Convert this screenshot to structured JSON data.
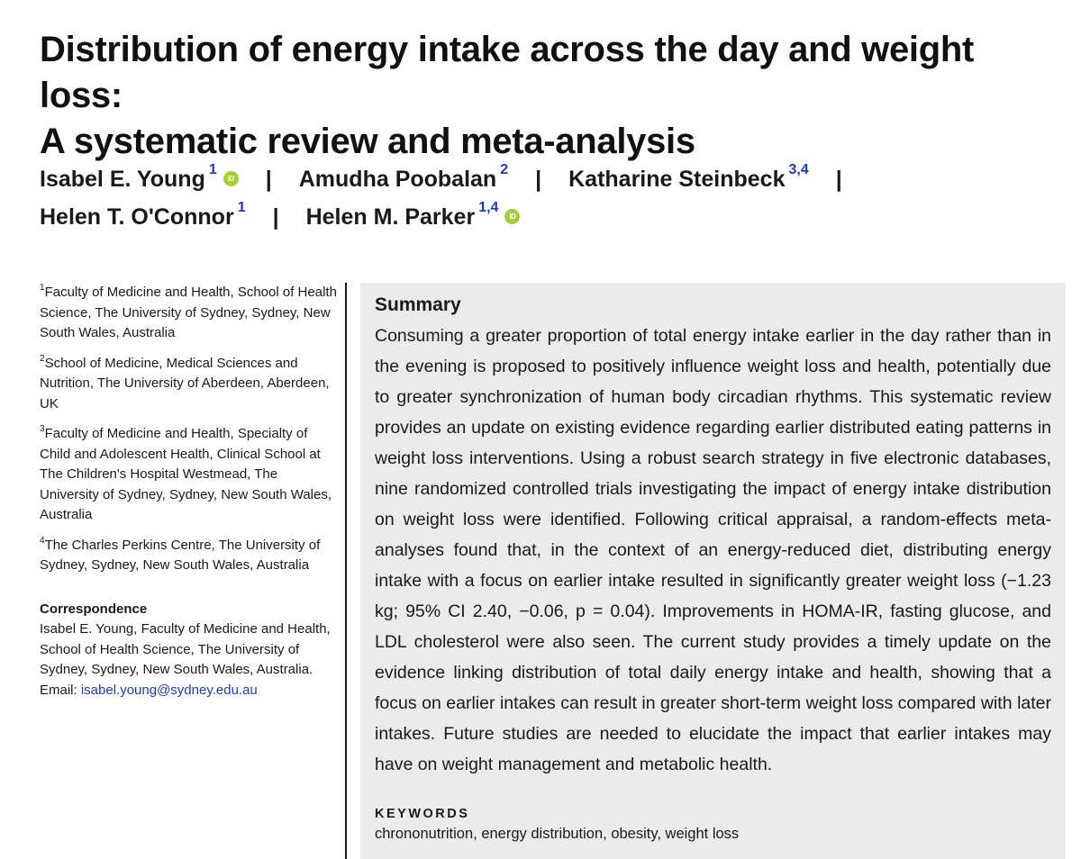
{
  "title": {
    "line1": "Distribution of energy intake across the day and weight loss:",
    "line2": "A systematic review and meta-analysis"
  },
  "authors": [
    {
      "name": "Isabel E. Young",
      "affiliation": "1",
      "orcid": true
    },
    {
      "name": "Amudha Poobalan",
      "affiliation": "2",
      "orcid": false
    },
    {
      "name": "Katharine Steinbeck",
      "affiliation": "3,4",
      "orcid": false
    },
    {
      "name": "Helen T. O'Connor",
      "affiliation": "1",
      "orcid": false
    },
    {
      "name": "Helen M. Parker",
      "affiliation": "1,4",
      "orcid": true
    }
  ],
  "orcid_label": "iD",
  "separator": "|",
  "affiliations": [
    {
      "number": "1",
      "text": "Faculty of Medicine and Health, School of Health Science, The University of Sydney, Sydney, New South Wales, Australia"
    },
    {
      "number": "2",
      "text": "School of Medicine, Medical Sciences and Nutrition, The University of Aberdeen, Aberdeen, UK"
    },
    {
      "number": "3",
      "text": "Faculty of Medicine and Health, Specialty of Child and Adolescent Health, Clinical School at The Children's Hospital Westmead, The University of Sydney, Sydney, New South Wales, Australia"
    },
    {
      "number": "4",
      "text": "The Charles Perkins Centre, The University of Sydney, Sydney, New South Wales, Australia"
    }
  ],
  "correspondence": {
    "heading": "Correspondence",
    "text": "Isabel E. Young, Faculty of Medicine and Health, School of Health Science, The University of Sydney, Sydney, New South Wales, Australia.",
    "email_label": "Email: ",
    "email": "isabel.young@sydney.edu.au"
  },
  "summary": {
    "heading": "Summary",
    "text": "Consuming a greater proportion of total energy intake earlier in the day rather than in the evening is proposed to positively influence weight loss and health, potentially due to greater synchronization of human body circadian rhythms. This systematic review provides an update on existing evidence regarding earlier distributed eating patterns in weight loss interventions. Using a robust search strategy in five electronic databases, nine randomized controlled trials investigating the impact of energy intake distribution on weight loss were identified. Following critical appraisal, a random-effects meta-analyses found that, in the context of an energy-reduced diet, distributing energy intake with a focus on earlier intake resulted in significantly greater weight loss (−1.23 kg; 95% CI 2.40, −0.06, p = 0.04). Improvements in HOMA-IR, fasting glucose, and LDL cholesterol were also seen. The current study provides a timely update on the evidence linking distribution of total daily energy intake and health, showing that a focus on earlier intakes can result in greater short-term weight loss compared with later intakes. Future studies are needed to elucidate the impact that earlier intakes may have on weight management and metabolic health."
  },
  "keywords": {
    "heading": "KEYWORDS",
    "text": "chrononutrition, energy distribution, obesity, weight loss"
  }
}
